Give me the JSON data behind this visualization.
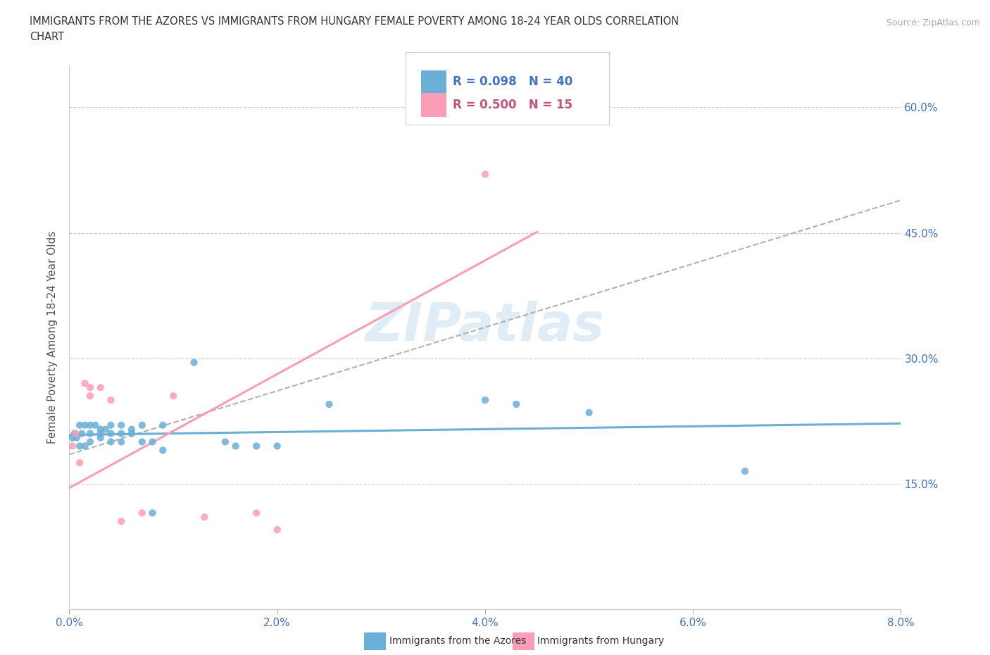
{
  "title_line1": "IMMIGRANTS FROM THE AZORES VS IMMIGRANTS FROM HUNGARY FEMALE POVERTY AMONG 18-24 YEAR OLDS CORRELATION",
  "title_line2": "CHART",
  "source_text": "Source: ZipAtlas.com",
  "ylabel": "Female Poverty Among 18-24 Year Olds",
  "xlim": [
    0.0,
    0.08
  ],
  "ylim": [
    0.0,
    0.65
  ],
  "xticks": [
    0.0,
    0.02,
    0.04,
    0.06,
    0.08
  ],
  "xticklabels": [
    "0.0%",
    "2.0%",
    "4.0%",
    "6.0%",
    "8.0%"
  ],
  "ytick_positions": [
    0.15,
    0.3,
    0.45,
    0.6
  ],
  "ytick_labels": [
    "15.0%",
    "30.0%",
    "45.0%",
    "60.0%"
  ],
  "azores_color": "#6baed6",
  "hungary_color": "#fc9db7",
  "azores_R": 0.098,
  "azores_N": 40,
  "hungary_R": 0.5,
  "hungary_N": 15,
  "watermark": "ZIPatlas",
  "azores_x": [
    0.0003,
    0.0005,
    0.0007,
    0.001,
    0.001,
    0.0012,
    0.0015,
    0.0015,
    0.002,
    0.002,
    0.002,
    0.0025,
    0.003,
    0.003,
    0.003,
    0.0035,
    0.004,
    0.004,
    0.004,
    0.005,
    0.005,
    0.005,
    0.006,
    0.006,
    0.007,
    0.007,
    0.008,
    0.008,
    0.009,
    0.009,
    0.012,
    0.015,
    0.016,
    0.018,
    0.02,
    0.025,
    0.04,
    0.043,
    0.05,
    0.065
  ],
  "azores_y": [
    0.205,
    0.21,
    0.205,
    0.22,
    0.195,
    0.21,
    0.22,
    0.195,
    0.22,
    0.21,
    0.2,
    0.22,
    0.215,
    0.21,
    0.205,
    0.215,
    0.22,
    0.21,
    0.2,
    0.22,
    0.21,
    0.2,
    0.215,
    0.21,
    0.22,
    0.2,
    0.2,
    0.115,
    0.22,
    0.19,
    0.295,
    0.2,
    0.195,
    0.195,
    0.195,
    0.245,
    0.25,
    0.245,
    0.235,
    0.165
  ],
  "hungary_x": [
    0.0003,
    0.0006,
    0.001,
    0.0015,
    0.002,
    0.002,
    0.003,
    0.004,
    0.005,
    0.007,
    0.01,
    0.013,
    0.018,
    0.02,
    0.04
  ],
  "hungary_y": [
    0.195,
    0.21,
    0.175,
    0.27,
    0.265,
    0.255,
    0.265,
    0.25,
    0.105,
    0.115,
    0.255,
    0.11,
    0.115,
    0.095,
    0.52
  ],
  "legend_label_azores": "Immigrants from the Azores",
  "legend_label_hungary": "Immigrants from Hungary",
  "grid_color": "#cccccc",
  "background_color": "#ffffff",
  "azores_trend_start_x": 0.0,
  "azores_trend_end_x": 0.08,
  "hungary_trend_start_x": 0.0,
  "hungary_trend_end_x": 0.045,
  "dashed_trend_start_x": 0.0,
  "dashed_trend_end_x": 0.08
}
